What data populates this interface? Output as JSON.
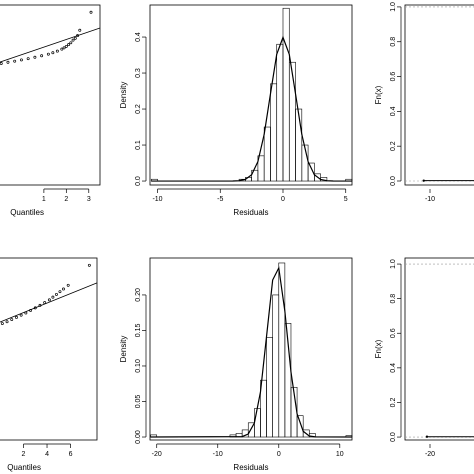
{
  "chart_data": [
    {
      "type": "scatter",
      "xlabel": "Quantiles",
      "xlim": [
        -1.4,
        3.5
      ],
      "ylim": [
        0,
        10
      ],
      "xticks": [
        1,
        2,
        3
      ],
      "x": [
        -0.9,
        -0.6,
        -0.3,
        0,
        0.3,
        0.6,
        0.9,
        1.2,
        1.4,
        1.6,
        1.8,
        1.9,
        2.0,
        2.1,
        2.2,
        2.3,
        2.4,
        2.5,
        2.6,
        3.1
      ],
      "values": [
        6.75,
        6.82,
        6.88,
        6.95,
        7.02,
        7.1,
        7.18,
        7.27,
        7.35,
        7.44,
        7.55,
        7.62,
        7.7,
        7.8,
        7.9,
        8.05,
        8.15,
        8.3,
        8.6,
        9.6
      ],
      "line": {
        "x": [
          -1.4,
          3.5
        ],
        "values": [
          6.64,
          8.72
        ]
      },
      "color": "#000000"
    },
    {
      "type": "histogram",
      "xlabel": "Residuals",
      "ylabel": "Density",
      "xlim": [
        -10.6,
        5.5
      ],
      "ylim": [
        -0.011,
        0.489
      ],
      "xticks": [
        -10,
        -5,
        0,
        5
      ],
      "yticks": [
        {
          "value": 0,
          "label": "0.0"
        },
        {
          "value": 0.1,
          "label": "0.1"
        },
        {
          "value": 0.2,
          "label": "0.2"
        },
        {
          "value": 0.3,
          "label": "0.3"
        },
        {
          "value": 0.4,
          "label": "0.4"
        }
      ],
      "bins": [
        -10.5,
        -10,
        -9.5,
        -9,
        -8.5,
        -8,
        -7.5,
        -7,
        -6.5,
        -6,
        -5.5,
        -5,
        -4.5,
        -4,
        -3.5,
        -3,
        -2.5,
        -2,
        -1.5,
        -1,
        -0.5,
        0,
        0.5,
        1,
        1.5,
        2,
        2.5,
        3,
        3.5,
        4,
        4.5,
        5,
        5.5
      ],
      "counts": [
        0.005,
        0,
        0,
        0,
        0,
        0,
        0,
        0,
        0,
        0,
        0,
        0,
        0,
        0,
        0.005,
        0.01,
        0.03,
        0.07,
        0.15,
        0.27,
        0.38,
        0.48,
        0.33,
        0.2,
        0.1,
        0.05,
        0.02,
        0.01,
        0,
        0,
        0,
        0.005
      ],
      "curve": {
        "x": [
          -10.5,
          -4,
          -3.5,
          -3,
          -2.5,
          -2,
          -1.5,
          -1,
          -0.5,
          0,
          0.5,
          1,
          1.5,
          2,
          2.5,
          3,
          3.5,
          4,
          5.5
        ],
        "values": [
          0,
          0.0001,
          0.0009,
          0.0044,
          0.0175,
          0.054,
          0.1295,
          0.242,
          0.352,
          0.399,
          0.352,
          0.242,
          0.1295,
          0.054,
          0.0175,
          0.0044,
          0.0009,
          0.0001,
          0
        ]
      },
      "color": "#000000"
    },
    {
      "type": "ecdf",
      "ylabel": "Fn(x)",
      "xlim": [
        -12,
        -6
      ],
      "ylim": [
        -0.023,
        1.011
      ],
      "xticks": [
        -10
      ],
      "yticks": [
        {
          "value": 0,
          "label": "0.0"
        },
        {
          "value": 0.2,
          "label": "0.2"
        },
        {
          "value": 0.4,
          "label": "0.4"
        },
        {
          "value": 0.6,
          "label": "0.6"
        },
        {
          "value": 0.8,
          "label": "0.8"
        },
        {
          "value": 1,
          "label": "1.0"
        }
      ],
      "x": [
        -10.5,
        -6
      ],
      "values": [
        0.002,
        0.002
      ],
      "hlines": [
        0,
        1
      ],
      "color": "#000000"
    },
    {
      "type": "scatter",
      "xlabel": "Quantiles",
      "xlim": [
        -0.85,
        8.25
      ],
      "ylim": [
        0,
        10
      ],
      "xticks": [
        2,
        4,
        6
      ],
      "x": [
        0.2,
        0.6,
        1.0,
        1.4,
        1.8,
        2.2,
        2.6,
        3.0,
        3.4,
        3.8,
        4.2,
        4.5,
        4.8,
        5.1,
        5.4,
        5.8,
        7.6
      ],
      "values": [
        6.4,
        6.5,
        6.62,
        6.74,
        6.86,
        6.98,
        7.12,
        7.26,
        7.4,
        7.55,
        7.7,
        7.85,
        8.0,
        8.15,
        8.3,
        8.5,
        9.6
      ],
      "line": {
        "x": [
          -0.85,
          8.25
        ],
        "values": [
          6.26,
          8.63
        ]
      },
      "color": "#000000"
    },
    {
      "type": "histogram",
      "xlabel": "Residuals",
      "ylabel": "Density",
      "xlim": [
        -21.1,
        12
      ],
      "ylim": [
        -0.0042,
        0.252
      ],
      "xticks": [
        -20,
        -10,
        0,
        10
      ],
      "yticks": [
        {
          "value": 0,
          "label": "0.00"
        },
        {
          "value": 0.05,
          "label": "0.05"
        },
        {
          "value": 0.1,
          "label": "0.10"
        },
        {
          "value": 0.15,
          "label": "0.15"
        },
        {
          "value": 0.2,
          "label": "0.20"
        }
      ],
      "bins": [
        -21,
        -20,
        -19,
        -18,
        -17,
        -16,
        -15,
        -14,
        -13,
        -12,
        -11,
        -10,
        -9,
        -8,
        -7,
        -6,
        -5,
        -4,
        -3,
        -2,
        -1,
        0,
        1,
        2,
        3,
        4,
        5,
        6,
        7,
        8,
        9,
        10,
        11,
        12
      ],
      "counts": [
        0.003,
        0,
        0,
        0,
        0,
        0,
        0,
        0,
        0,
        0,
        0,
        0,
        0,
        0.003,
        0.005,
        0.01,
        0.02,
        0.04,
        0.08,
        0.14,
        0.2,
        0.245,
        0.16,
        0.07,
        0.03,
        0.01,
        0.005,
        0,
        0,
        0,
        0,
        0,
        0.002
      ],
      "curve": {
        "x": [
          -21,
          -6,
          -5,
          -4,
          -3,
          -2,
          -1,
          0,
          1,
          2,
          3,
          4,
          5,
          6,
          12
        ],
        "values": [
          0,
          0.0006,
          0.0042,
          0.0196,
          0.0634,
          0.142,
          0.221,
          0.238,
          0.177,
          0.0915,
          0.0327,
          0.0081,
          0.0014,
          0.0002,
          0
        ]
      },
      "color": "#000000"
    },
    {
      "type": "ecdf",
      "ylabel": "Fn(x)",
      "xlim": [
        -24.1,
        -11.8
      ],
      "ylim": [
        -0.017,
        1.035
      ],
      "xticks": [
        -20
      ],
      "yticks": [
        {
          "value": 0,
          "label": "0.0"
        },
        {
          "value": 0.2,
          "label": "0.2"
        },
        {
          "value": 0.4,
          "label": "0.4"
        },
        {
          "value": 0.6,
          "label": "0.6"
        },
        {
          "value": 0.8,
          "label": "0.8"
        },
        {
          "value": 1,
          "label": "1.0"
        }
      ],
      "x": [
        -20.5,
        -11.8
      ],
      "values": [
        0.002,
        0.002
      ],
      "hlines": [
        0,
        1
      ],
      "color": "#000000"
    }
  ]
}
